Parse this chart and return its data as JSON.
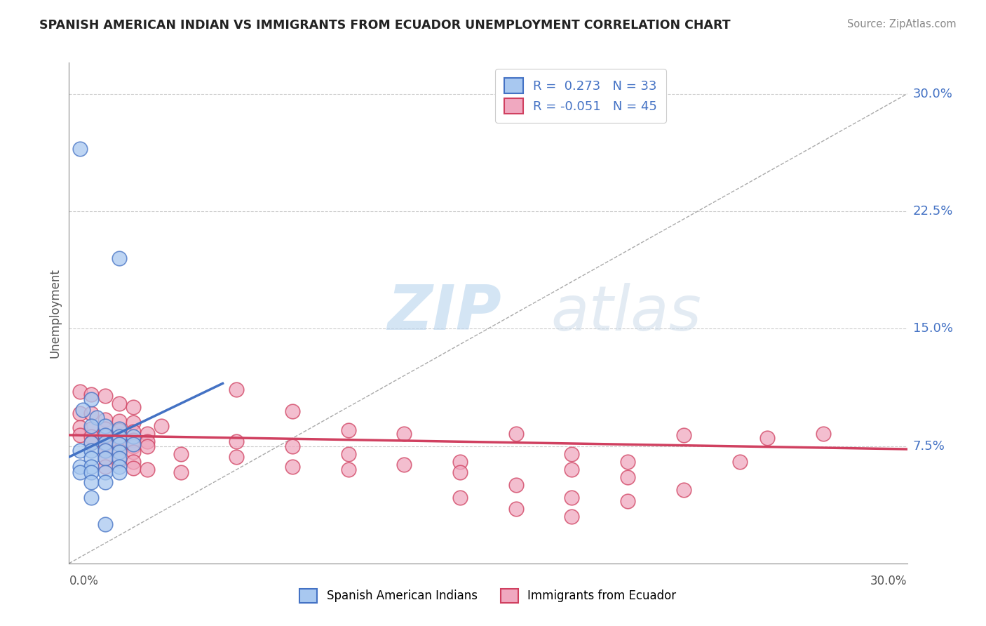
{
  "title": "SPANISH AMERICAN INDIAN VS IMMIGRANTS FROM ECUADOR UNEMPLOYMENT CORRELATION CHART",
  "source": "Source: ZipAtlas.com",
  "ylabel": "Unemployment",
  "xlim": [
    0.0,
    0.3
  ],
  "ylim": [
    0.0,
    0.32
  ],
  "ytick_vals": [
    0.075,
    0.15,
    0.225,
    0.3
  ],
  "color_blue": "#a8c8f0",
  "color_pink": "#f0a8c0",
  "line_blue": "#4472c4",
  "line_pink": "#d04060",
  "legend_text_color": "#4472c4",
  "blue_scatter": [
    [
      0.004,
      0.265
    ],
    [
      0.018,
      0.195
    ],
    [
      0.008,
      0.105
    ],
    [
      0.005,
      0.098
    ],
    [
      0.01,
      0.093
    ],
    [
      0.008,
      0.088
    ],
    [
      0.013,
      0.088
    ],
    [
      0.018,
      0.086
    ],
    [
      0.013,
      0.082
    ],
    [
      0.018,
      0.081
    ],
    [
      0.023,
      0.081
    ],
    [
      0.008,
      0.077
    ],
    [
      0.013,
      0.077
    ],
    [
      0.018,
      0.076
    ],
    [
      0.023,
      0.076
    ],
    [
      0.004,
      0.072
    ],
    [
      0.008,
      0.072
    ],
    [
      0.013,
      0.072
    ],
    [
      0.018,
      0.071
    ],
    [
      0.008,
      0.067
    ],
    [
      0.013,
      0.067
    ],
    [
      0.018,
      0.067
    ],
    [
      0.004,
      0.062
    ],
    [
      0.008,
      0.062
    ],
    [
      0.018,
      0.062
    ],
    [
      0.004,
      0.058
    ],
    [
      0.008,
      0.058
    ],
    [
      0.013,
      0.058
    ],
    [
      0.018,
      0.058
    ],
    [
      0.008,
      0.052
    ],
    [
      0.013,
      0.052
    ],
    [
      0.008,
      0.042
    ],
    [
      0.013,
      0.025
    ]
  ],
  "pink_scatter": [
    [
      0.004,
      0.11
    ],
    [
      0.008,
      0.108
    ],
    [
      0.013,
      0.107
    ],
    [
      0.018,
      0.102
    ],
    [
      0.023,
      0.1
    ],
    [
      0.004,
      0.096
    ],
    [
      0.008,
      0.096
    ],
    [
      0.013,
      0.092
    ],
    [
      0.018,
      0.091
    ],
    [
      0.023,
      0.09
    ],
    [
      0.004,
      0.087
    ],
    [
      0.008,
      0.086
    ],
    [
      0.013,
      0.086
    ],
    [
      0.018,
      0.085
    ],
    [
      0.023,
      0.084
    ],
    [
      0.028,
      0.083
    ],
    [
      0.004,
      0.082
    ],
    [
      0.008,
      0.081
    ],
    [
      0.013,
      0.081
    ],
    [
      0.018,
      0.08
    ],
    [
      0.023,
      0.079
    ],
    [
      0.028,
      0.078
    ],
    [
      0.008,
      0.077
    ],
    [
      0.013,
      0.076
    ],
    [
      0.018,
      0.076
    ],
    [
      0.023,
      0.075
    ],
    [
      0.028,
      0.075
    ],
    [
      0.013,
      0.072
    ],
    [
      0.018,
      0.072
    ],
    [
      0.023,
      0.071
    ],
    [
      0.013,
      0.067
    ],
    [
      0.018,
      0.066
    ],
    [
      0.023,
      0.065
    ],
    [
      0.013,
      0.062
    ],
    [
      0.023,
      0.061
    ],
    [
      0.028,
      0.06
    ],
    [
      0.033,
      0.088
    ],
    [
      0.06,
      0.111
    ],
    [
      0.08,
      0.097
    ],
    [
      0.1,
      0.085
    ],
    [
      0.12,
      0.083
    ],
    [
      0.14,
      0.065
    ],
    [
      0.16,
      0.083
    ],
    [
      0.18,
      0.07
    ],
    [
      0.2,
      0.065
    ],
    [
      0.22,
      0.082
    ],
    [
      0.24,
      0.065
    ],
    [
      0.25,
      0.08
    ],
    [
      0.27,
      0.083
    ],
    [
      0.14,
      0.042
    ],
    [
      0.16,
      0.05
    ],
    [
      0.18,
      0.042
    ],
    [
      0.2,
      0.055
    ],
    [
      0.22,
      0.047
    ],
    [
      0.2,
      0.04
    ],
    [
      0.16,
      0.035
    ],
    [
      0.18,
      0.03
    ],
    [
      0.14,
      0.058
    ],
    [
      0.1,
      0.06
    ],
    [
      0.08,
      0.075
    ],
    [
      0.06,
      0.068
    ],
    [
      0.04,
      0.058
    ],
    [
      0.04,
      0.07
    ],
    [
      0.06,
      0.078
    ],
    [
      0.08,
      0.062
    ],
    [
      0.1,
      0.07
    ],
    [
      0.12,
      0.063
    ],
    [
      0.18,
      0.06
    ]
  ],
  "blue_line_x": [
    0.0,
    0.055
  ],
  "blue_line_y": [
    0.068,
    0.115
  ],
  "pink_line_x": [
    0.0,
    0.3
  ],
  "pink_line_y": [
    0.082,
    0.073
  ]
}
